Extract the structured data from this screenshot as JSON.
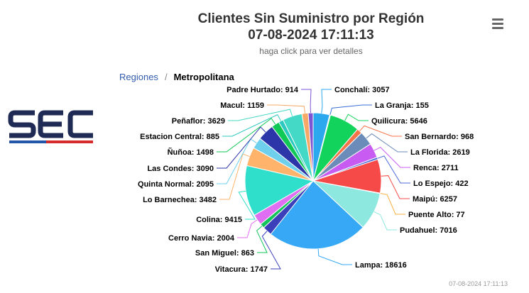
{
  "header": {
    "title_line1": "Clientes Sin Suministro por Región",
    "title_line2": "07-08-2024 17:11:13",
    "subtitle": "haga click para ver detalles"
  },
  "breadcrumb": {
    "parent": "Regiones",
    "separator": "/",
    "current": "Metropolitana"
  },
  "logo": {
    "text": "SEC",
    "colors": {
      "navy": "#1f2a55",
      "red": "#d52b2b",
      "blue": "#2356a8"
    }
  },
  "menu": {
    "icon": "hamburger-menu-icon"
  },
  "footer": {
    "timestamp": "07-08-2024 17:11:13"
  },
  "chart_data": {
    "type": "pie",
    "title": "Clientes Sin Suministro por Región",
    "subtitle": "07-08-2024 17:11:13",
    "slices": [
      {
        "name": "Conchalí",
        "value": 3057,
        "color": "#2ca9ee"
      },
      {
        "name": "La Granja",
        "value": 155,
        "color": "#3b6fd6"
      },
      {
        "name": "Quilicura",
        "value": 5646,
        "color": "#12d45c"
      },
      {
        "name": "San Bernardo",
        "value": 968,
        "color": "#f4744a"
      },
      {
        "name": "La Florida",
        "value": 2619,
        "color": "#6b8cb8"
      },
      {
        "name": "Renca",
        "value": 2711,
        "color": "#c85cf2"
      },
      {
        "name": "Lo Espejo",
        "value": 422,
        "color": "#4d6bd8"
      },
      {
        "name": "Maipú",
        "value": 6257,
        "color": "#f54a48"
      },
      {
        "name": "Puente Alto",
        "value": 77,
        "color": "#f4b040"
      },
      {
        "name": "Pudahuel",
        "value": 7016,
        "color": "#8de8e0"
      },
      {
        "name": "Lampa",
        "value": 18616,
        "color": "#36a8f5"
      },
      {
        "name": "Vitacura",
        "value": 1747,
        "color": "#3b3fba"
      },
      {
        "name": "San Miguel",
        "value": 863,
        "color": "#12c45a"
      },
      {
        "name": "Cerro Navia",
        "value": 2004,
        "color": "#e06ef2"
      },
      {
        "name": "Colina",
        "value": 9415,
        "color": "#30dfcb"
      },
      {
        "name": "Lo Barnechea",
        "value": 3482,
        "color": "#ffb36b"
      },
      {
        "name": "Quinta Normal",
        "value": 2095,
        "color": "#6fd0ee"
      },
      {
        "name": "Las Condes",
        "value": 3090,
        "color": "#2d36a8"
      },
      {
        "name": "Ñuñoa",
        "value": 1498,
        "color": "#10c856"
      },
      {
        "name": "Estacion Central",
        "value": 885,
        "color": "#2ec8c2"
      },
      {
        "name": "Peñaflor",
        "value": 3629,
        "color": "#44d8c6"
      },
      {
        "name": "Macul",
        "value": 1159,
        "color": "#f7a867"
      },
      {
        "name": "Padre Hurtado",
        "value": 914,
        "color": "#7d56d4"
      }
    ]
  }
}
